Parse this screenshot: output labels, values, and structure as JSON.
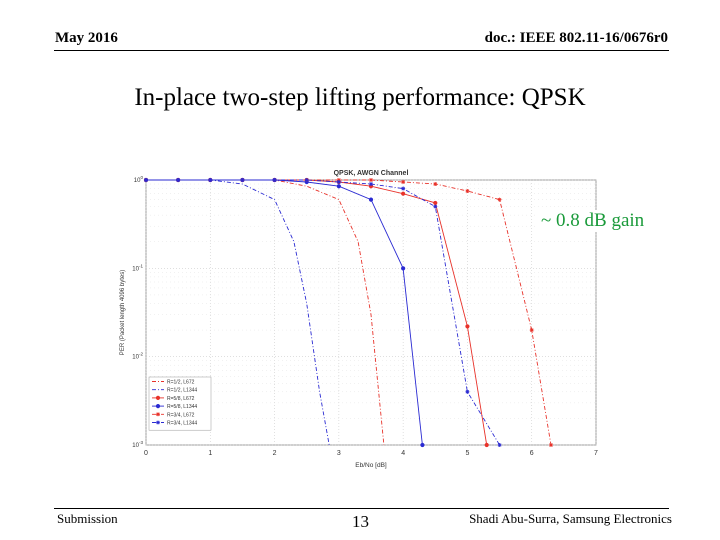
{
  "header": {
    "date": "May 2016",
    "doc_id": "doc.: IEEE 802.11-16/0676r0"
  },
  "slide_title": "In-place two-step lifting performance: QPSK",
  "annotation": "~ 0.8 dB gain",
  "footer": {
    "left": "Submission",
    "page": "13",
    "right": "Shadi Abu-Surra, Samsung Electronics"
  },
  "colors": {
    "red": "#e8322a",
    "blue": "#2a2ad2",
    "annotation": "#1a9a3a"
  },
  "chart_data": {
    "type": "line",
    "title": "QPSK, AWGN Channel",
    "xlabel": "Eb/No [dB]",
    "ylabel": "PER (Packet length 4096 bytes)",
    "xlim": [
      0,
      7
    ],
    "xscale": "linear",
    "ylim": [
      0.001,
      1
    ],
    "yscale": "log",
    "grid": true,
    "legend_location": "lower-left",
    "x_ticks": [
      "0",
      "1",
      "2",
      "3",
      "4",
      "5",
      "6",
      "7"
    ],
    "y_ticks": [
      "10^0",
      "10^-1",
      "10^-2",
      "10^-3"
    ],
    "series": [
      {
        "name": "R=1/2, L672",
        "color": "#e8322a",
        "style": "dash-dot",
        "marker": "none",
        "x": [
          0,
          1,
          2,
          2.5,
          3,
          3.3,
          3.5,
          3.7
        ],
        "y": [
          1,
          1,
          1,
          0.85,
          0.6,
          0.2,
          0.03,
          0.001
        ]
      },
      {
        "name": "R=1/2, L1344",
        "color": "#2a2ad2",
        "style": "dash-dot",
        "marker": "none",
        "x": [
          0,
          1,
          1.5,
          2,
          2.3,
          2.5,
          2.7,
          2.85
        ],
        "y": [
          1,
          1,
          0.9,
          0.6,
          0.2,
          0.04,
          0.004,
          0.001
        ]
      },
      {
        "name": "R=5/8, L672",
        "color": "#e8322a",
        "style": "solid",
        "marker": "circle",
        "x": [
          0,
          0.5,
          1,
          1.5,
          2,
          2.5,
          3,
          3.5,
          4,
          4.5,
          5,
          5.3
        ],
        "y": [
          1,
          1,
          1,
          1,
          1,
          1,
          0.95,
          0.85,
          0.7,
          0.55,
          0.022,
          0.001
        ]
      },
      {
        "name": "R=5/8, L1344",
        "color": "#2a2ad2",
        "style": "solid",
        "marker": "circle",
        "x": [
          0,
          0.5,
          1,
          1.5,
          2,
          2.5,
          3,
          3.5,
          4,
          4.3
        ],
        "y": [
          1,
          1,
          1,
          1,
          1,
          0.95,
          0.85,
          0.6,
          0.1,
          0.001
        ]
      },
      {
        "name": "R=3/4, L672",
        "color": "#e8322a",
        "style": "dash-dot",
        "marker": "star",
        "x": [
          0,
          0.5,
          1,
          1.5,
          2,
          2.5,
          3,
          3.5,
          4,
          4.5,
          5,
          5.5,
          6,
          6.3
        ],
        "y": [
          1,
          1,
          1,
          1,
          1,
          1,
          1,
          1,
          0.95,
          0.9,
          0.75,
          0.6,
          0.02,
          0.001
        ]
      },
      {
        "name": "R=3/4, L1344",
        "color": "#2a2ad2",
        "style": "dash-dot",
        "marker": "star",
        "x": [
          0,
          0.5,
          1,
          1.5,
          2,
          2.5,
          3,
          3.5,
          4,
          4.5,
          5,
          5.5
        ],
        "y": [
          1,
          1,
          1,
          1,
          1,
          1,
          0.95,
          0.9,
          0.8,
          0.5,
          0.004,
          0.001
        ]
      }
    ]
  }
}
